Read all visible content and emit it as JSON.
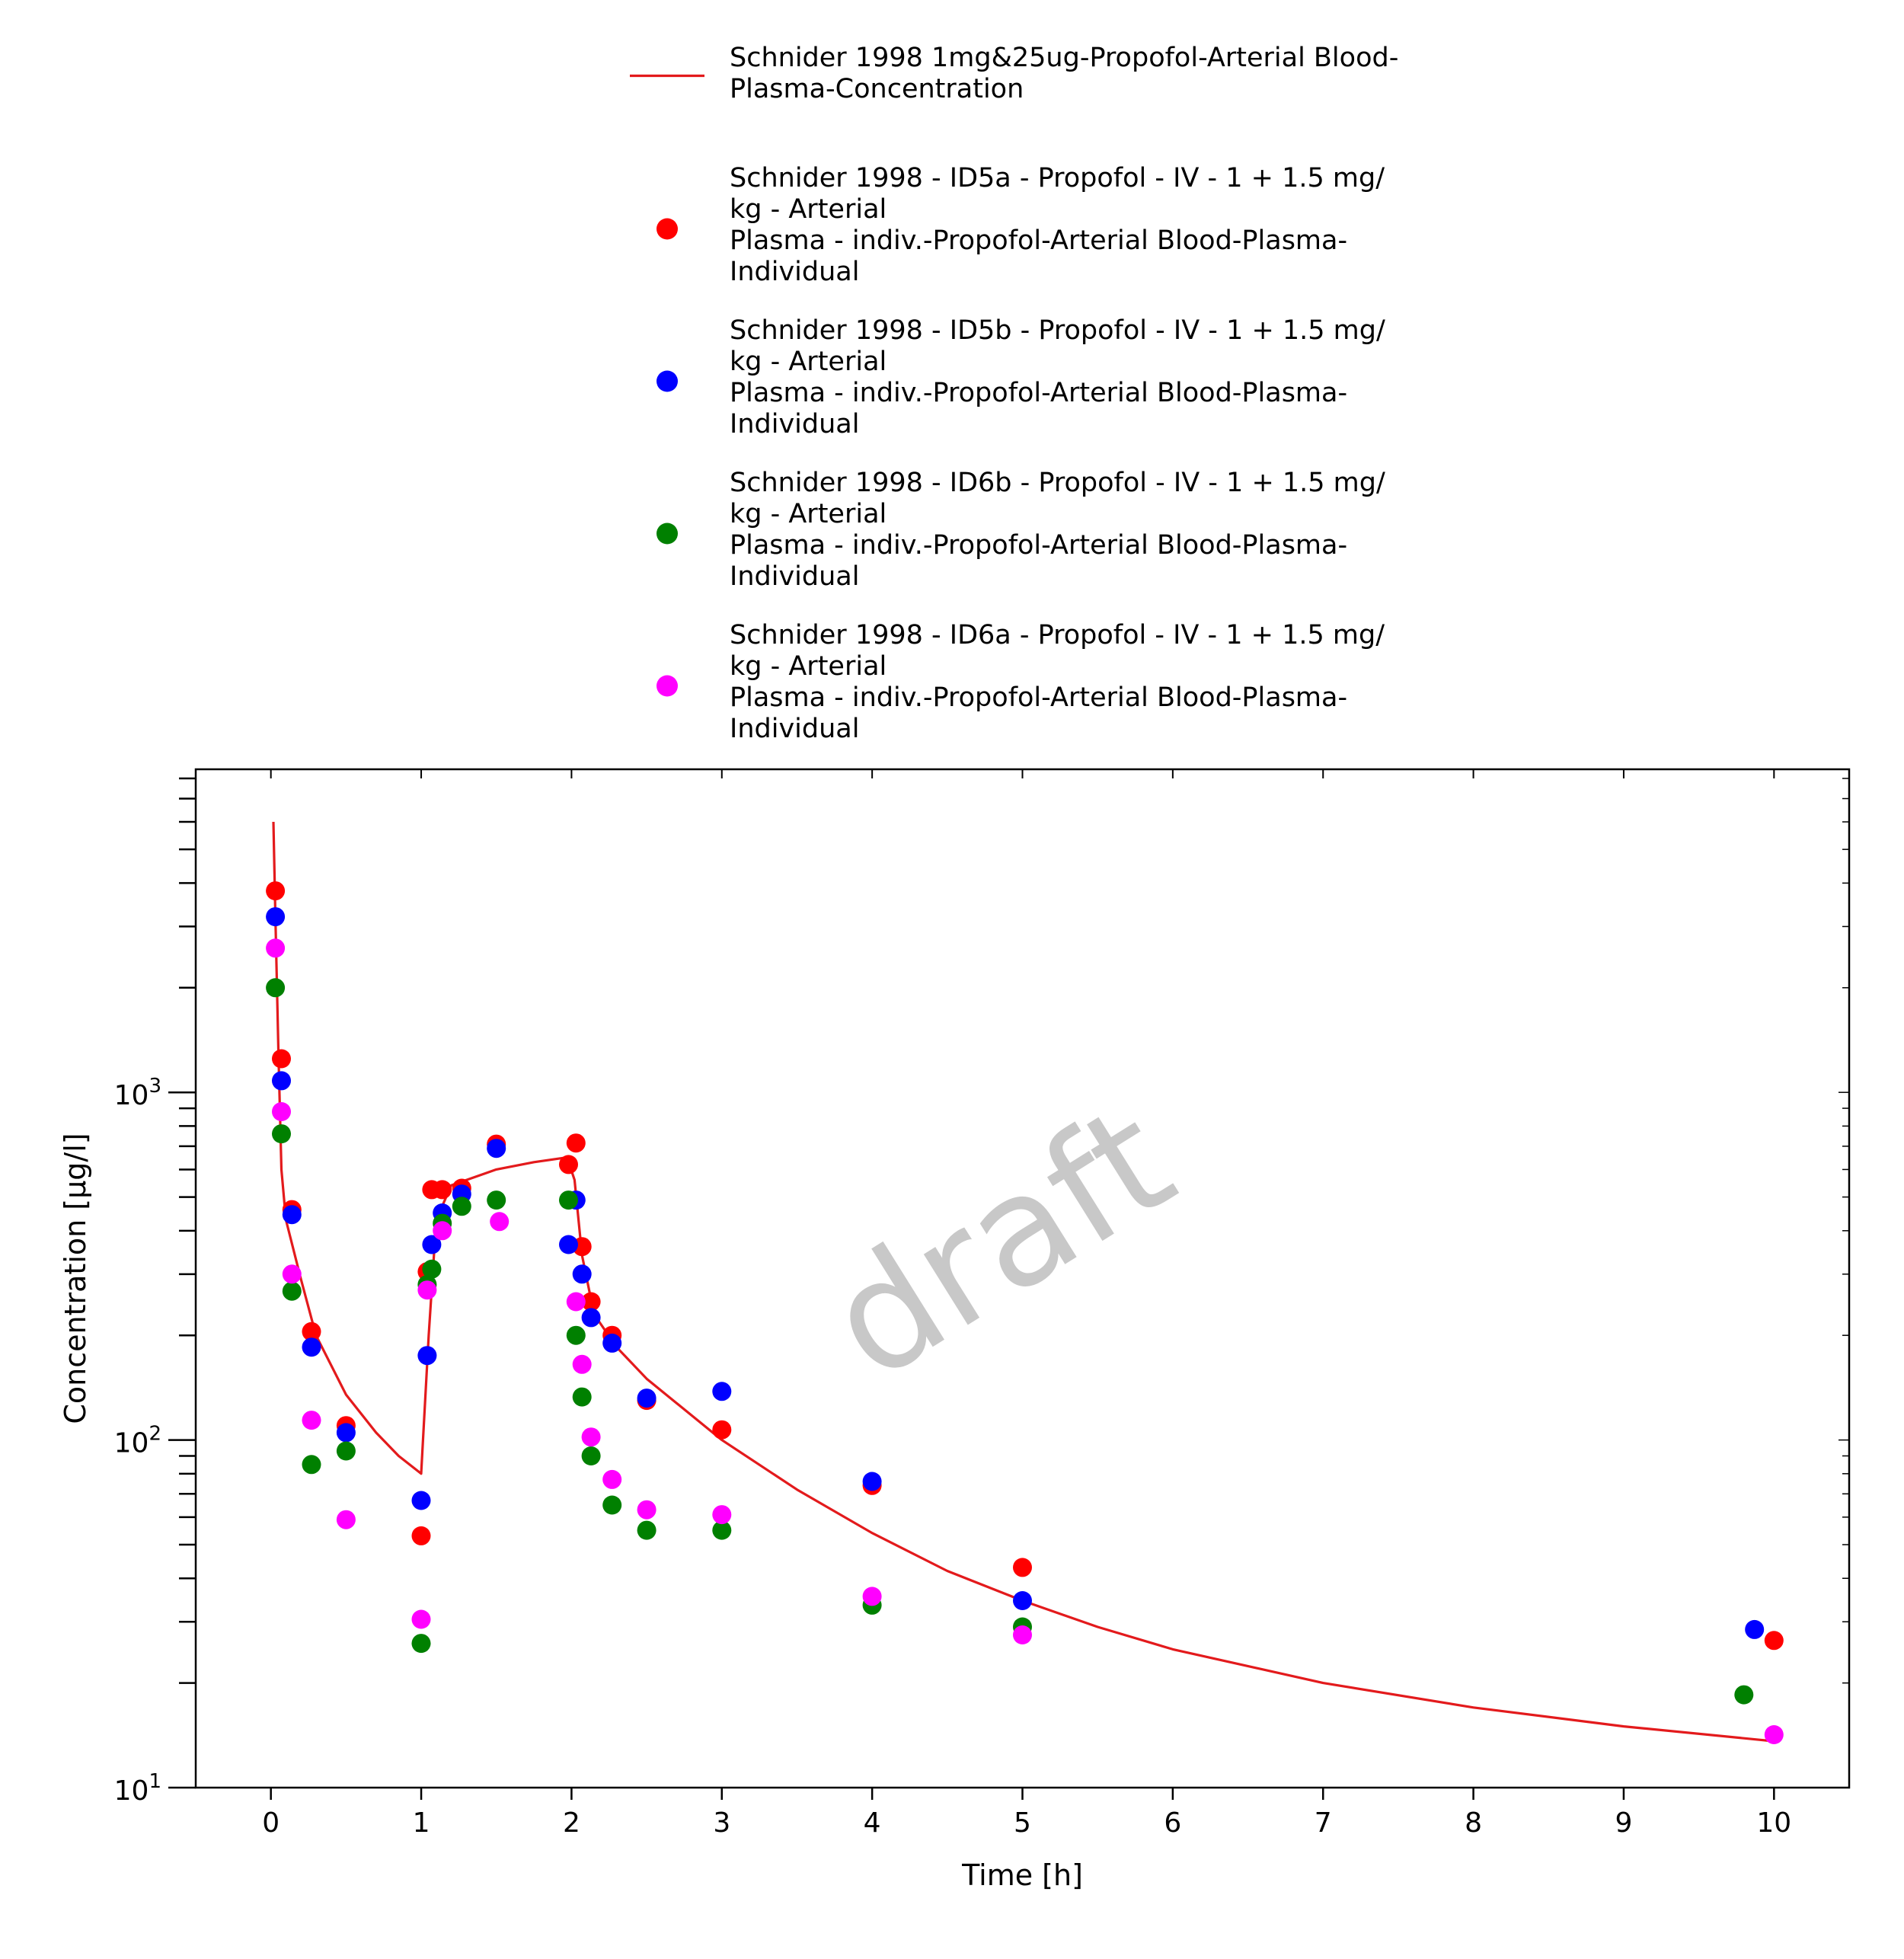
{
  "chart_data": {
    "type": "scatter",
    "xlabel": "Time [h]",
    "ylabel": "Concentration [µg/l]",
    "xlim": [
      -0.5,
      10.5
    ],
    "ylim": [
      10,
      8500
    ],
    "y_scale": "log",
    "x_ticks": [
      0,
      1,
      2,
      3,
      4,
      5,
      6,
      7,
      8,
      9,
      10
    ],
    "y_tick_labels": [
      {
        "value": 10,
        "base": "10",
        "exp": "1"
      },
      {
        "value": 100,
        "base": "10",
        "exp": "2"
      },
      {
        "value": 1000,
        "base": "10",
        "exp": "3"
      }
    ],
    "grid": false,
    "legend_position": "top",
    "watermark": "draft",
    "legend": [
      {
        "marker": "line",
        "color": "#e31a1c",
        "lines": [
          "Schnider 1998 1mg&25ug-Propofol-Arterial Blood-",
          "Plasma-Concentration"
        ]
      },
      {
        "marker": "dot",
        "color": "#ff0000",
        "lines": [
          "Schnider 1998 - ID5a - Propofol - IV - 1 + 1.5 mg/",
          "kg - Arterial",
          "Plasma - indiv.-Propofol-Arterial Blood-Plasma-",
          "Individual"
        ]
      },
      {
        "marker": "dot",
        "color": "#0000ff",
        "lines": [
          "Schnider 1998 - ID5b - Propofol - IV - 1 + 1.5 mg/",
          "kg - Arterial",
          "Plasma - indiv.-Propofol-Arterial Blood-Plasma-",
          "Individual"
        ]
      },
      {
        "marker": "dot",
        "color": "#008000",
        "lines": [
          "Schnider 1998 - ID6b - Propofol - IV - 1 + 1.5 mg/",
          "kg - Arterial",
          "Plasma - indiv.-Propofol-Arterial Blood-Plasma-",
          "Individual"
        ]
      },
      {
        "marker": "dot",
        "color": "#ff00ff",
        "lines": [
          "Schnider 1998 - ID6a - Propofol - IV - 1 + 1.5 mg/",
          "kg - Arterial",
          "Plasma - indiv.-Propofol-Arterial Blood-Plasma-",
          "Individual"
        ]
      }
    ],
    "line_series": {
      "color": "#e31a1c",
      "points": [
        [
          0.017,
          6000
        ],
        [
          0.03,
          3200
        ],
        [
          0.05,
          1300
        ],
        [
          0.07,
          600
        ],
        [
          0.1,
          430
        ],
        [
          0.2,
          290
        ],
        [
          0.3,
          200
        ],
        [
          0.5,
          135
        ],
        [
          0.7,
          105
        ],
        [
          0.85,
          90
        ],
        [
          1.0,
          80
        ],
        [
          1.05,
          200
        ],
        [
          1.1,
          430
        ],
        [
          1.2,
          540
        ],
        [
          1.5,
          600
        ],
        [
          1.75,
          630
        ],
        [
          1.97,
          650
        ],
        [
          2.02,
          560
        ],
        [
          2.07,
          340
        ],
        [
          2.15,
          230
        ],
        [
          2.3,
          185
        ],
        [
          2.5,
          150
        ],
        [
          3.0,
          100
        ],
        [
          3.5,
          72
        ],
        [
          4.0,
          54
        ],
        [
          4.5,
          42
        ],
        [
          5.0,
          34.5
        ],
        [
          5.5,
          29
        ],
        [
          6.0,
          25
        ],
        [
          7.0,
          20
        ],
        [
          8.0,
          17
        ],
        [
          9.0,
          15
        ],
        [
          10.0,
          13.6
        ]
      ]
    },
    "scatter_series": [
      {
        "color": "#ff0000",
        "points": [
          [
            0.03,
            3800
          ],
          [
            0.07,
            1250
          ],
          [
            0.14,
            460
          ],
          [
            0.27,
            205
          ],
          [
            0.5,
            110
          ],
          [
            1.0,
            53
          ],
          [
            1.04,
            305
          ],
          [
            1.07,
            525
          ],
          [
            1.14,
            525
          ],
          [
            1.27,
            530
          ],
          [
            1.5,
            710
          ],
          [
            1.98,
            620
          ],
          [
            2.03,
            715
          ],
          [
            2.07,
            360
          ],
          [
            2.13,
            250
          ],
          [
            2.27,
            200
          ],
          [
            2.5,
            130
          ],
          [
            3.0,
            107
          ],
          [
            4.0,
            74
          ],
          [
            5.0,
            43
          ],
          [
            10.0,
            26.5
          ]
        ]
      },
      {
        "color": "#0000ff",
        "points": [
          [
            0.03,
            3200
          ],
          [
            0.07,
            1080
          ],
          [
            0.14,
            445
          ],
          [
            0.27,
            185
          ],
          [
            0.5,
            105
          ],
          [
            1.0,
            67
          ],
          [
            1.04,
            175
          ],
          [
            1.07,
            365
          ],
          [
            1.14,
            450
          ],
          [
            1.27,
            510
          ],
          [
            1.5,
            690
          ],
          [
            1.98,
            365
          ],
          [
            2.03,
            490
          ],
          [
            2.07,
            300
          ],
          [
            2.13,
            225
          ],
          [
            2.27,
            190
          ],
          [
            2.5,
            132
          ],
          [
            3.0,
            138
          ],
          [
            4.0,
            76
          ],
          [
            5.0,
            34.5
          ],
          [
            9.87,
            28.5
          ]
        ]
      },
      {
        "color": "#008000",
        "points": [
          [
            0.03,
            2000
          ],
          [
            0.07,
            760
          ],
          [
            0.14,
            268
          ],
          [
            0.27,
            85
          ],
          [
            0.5,
            93
          ],
          [
            1.0,
            26
          ],
          [
            1.04,
            280
          ],
          [
            1.07,
            310
          ],
          [
            1.14,
            420
          ],
          [
            1.27,
            470
          ],
          [
            1.5,
            490
          ],
          [
            1.98,
            490
          ],
          [
            2.03,
            200
          ],
          [
            2.07,
            133
          ],
          [
            2.13,
            90
          ],
          [
            2.27,
            65
          ],
          [
            2.5,
            55
          ],
          [
            3.0,
            55
          ],
          [
            4.0,
            33.5
          ],
          [
            5.0,
            29
          ],
          [
            9.8,
            18.5
          ]
        ]
      },
      {
        "color": "#ff00ff",
        "points": [
          [
            0.03,
            2600
          ],
          [
            0.07,
            880
          ],
          [
            0.14,
            300
          ],
          [
            0.27,
            114
          ],
          [
            0.5,
            59
          ],
          [
            1.0,
            30.5
          ],
          [
            1.04,
            270
          ],
          [
            1.14,
            400
          ],
          [
            1.52,
            425
          ],
          [
            2.03,
            250
          ],
          [
            2.07,
            165
          ],
          [
            2.13,
            102
          ],
          [
            2.27,
            77
          ],
          [
            2.5,
            63
          ],
          [
            3.0,
            61
          ],
          [
            4.0,
            35.5
          ],
          [
            5.0,
            27.5
          ],
          [
            10.0,
            14.2
          ]
        ]
      }
    ]
  }
}
